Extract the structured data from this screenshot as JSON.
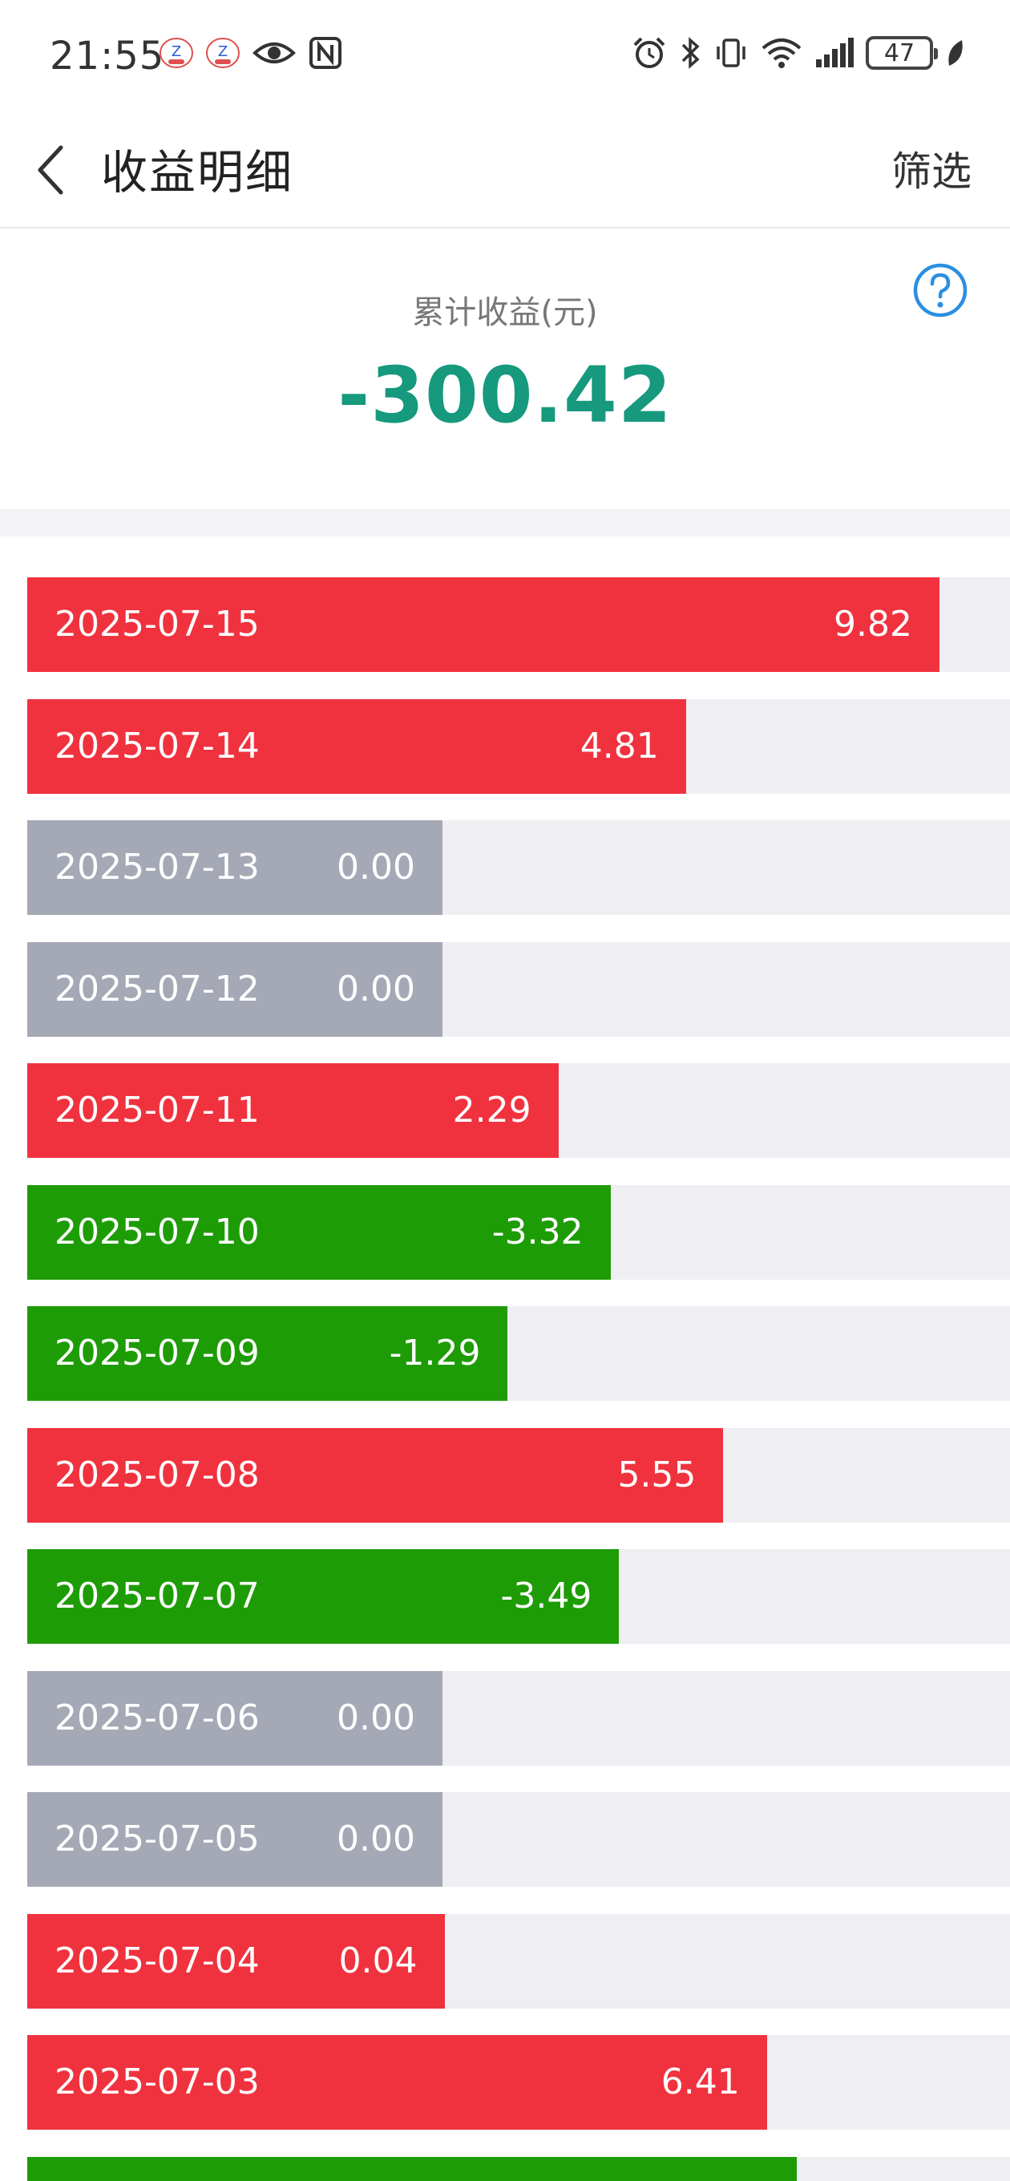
{
  "status_bar": {
    "time": "21:55",
    "battery_level": "47",
    "left_icons": [
      "app-notification-icon",
      "app-notification-icon",
      "eye-icon",
      "nfc-icon"
    ],
    "right_icons": [
      "alarm-icon",
      "bluetooth-icon",
      "vibrate-icon",
      "wifi-icon",
      "cellular-signal-icon",
      "battery-icon",
      "leaf-icon"
    ]
  },
  "nav": {
    "title": "收益明细",
    "filter_label": "筛选"
  },
  "summary": {
    "label": "累计收益(元)",
    "value": "-300.42",
    "value_color": "#16997c"
  },
  "colors": {
    "positive": "#f0323f",
    "negative": "#1e9c06",
    "zero": "#a5a8b5",
    "track": "#efeff3"
  },
  "earnings": {
    "rows": [
      {
        "date": "2025-07-15",
        "value": "9.82",
        "amount": 9.82
      },
      {
        "date": "2025-07-14",
        "value": "4.81",
        "amount": 4.81
      },
      {
        "date": "2025-07-13",
        "value": "0.00",
        "amount": 0
      },
      {
        "date": "2025-07-12",
        "value": "0.00",
        "amount": 0
      },
      {
        "date": "2025-07-11",
        "value": "2.29",
        "amount": 2.29
      },
      {
        "date": "2025-07-10",
        "value": "-3.32",
        "amount": -3.32
      },
      {
        "date": "2025-07-09",
        "value": "-1.29",
        "amount": -1.29
      },
      {
        "date": "2025-07-08",
        "value": "5.55",
        "amount": 5.55
      },
      {
        "date": "2025-07-07",
        "value": "-3.49",
        "amount": -3.49
      },
      {
        "date": "2025-07-06",
        "value": "0.00",
        "amount": 0
      },
      {
        "date": "2025-07-05",
        "value": "0.00",
        "amount": 0
      },
      {
        "date": "2025-07-04",
        "value": "0.04",
        "amount": 0.04
      },
      {
        "date": "2025-07-03",
        "value": "6.41",
        "amount": 6.41
      },
      {
        "date": "",
        "value": "",
        "amount": -7.0
      }
    ]
  }
}
